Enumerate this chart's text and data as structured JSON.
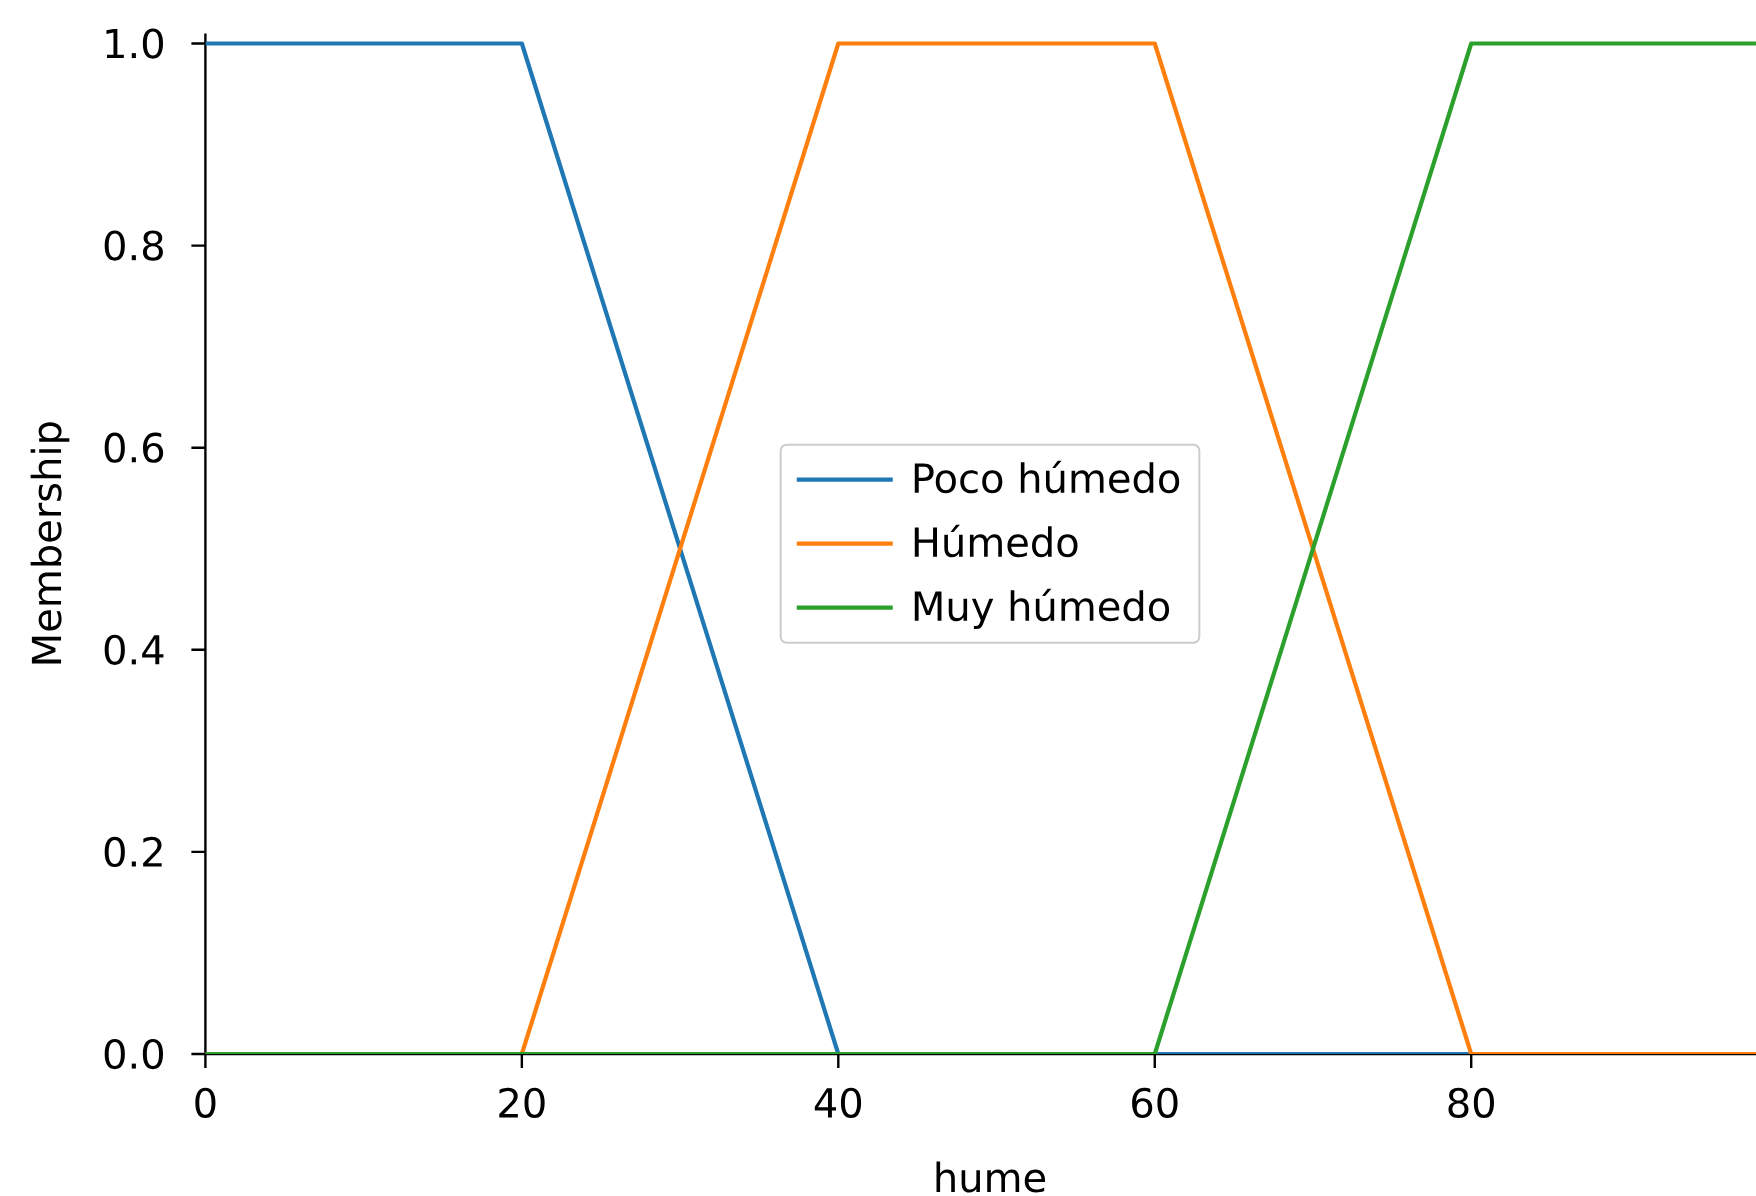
{
  "chart_data": {
    "type": "line",
    "xlabel": "hume",
    "ylabel": "Membership",
    "xlim": [
      0,
      98
    ],
    "ylim": [
      0,
      1.01
    ],
    "xticks": [
      0,
      20,
      40,
      60,
      80
    ],
    "yticks": [
      {
        "value": 0,
        "label": "0.0"
      },
      {
        "value": 0.2,
        "label": "0.2"
      },
      {
        "value": 0.4,
        "label": "0.4"
      },
      {
        "value": 0.6,
        "label": "0.6"
      },
      {
        "value": 0.8,
        "label": "0.8"
      },
      {
        "value": 1,
        "label": "1.0"
      }
    ],
    "legend": "center",
    "series": [
      {
        "name": "Poco húmedo",
        "color": "#1f77b4",
        "x": [
          0,
          20,
          40,
          98
        ],
        "values": [
          1,
          1,
          0,
          0
        ]
      },
      {
        "name": "Húmedo",
        "color": "#ff7f0e",
        "x": [
          0,
          20,
          40,
          60,
          80,
          98
        ],
        "values": [
          0,
          0,
          1,
          1,
          0,
          0
        ]
      },
      {
        "name": "Muy húmedo",
        "color": "#2ca02c",
        "x": [
          0,
          60,
          80,
          98
        ],
        "values": [
          0,
          0,
          1,
          1
        ]
      }
    ]
  }
}
